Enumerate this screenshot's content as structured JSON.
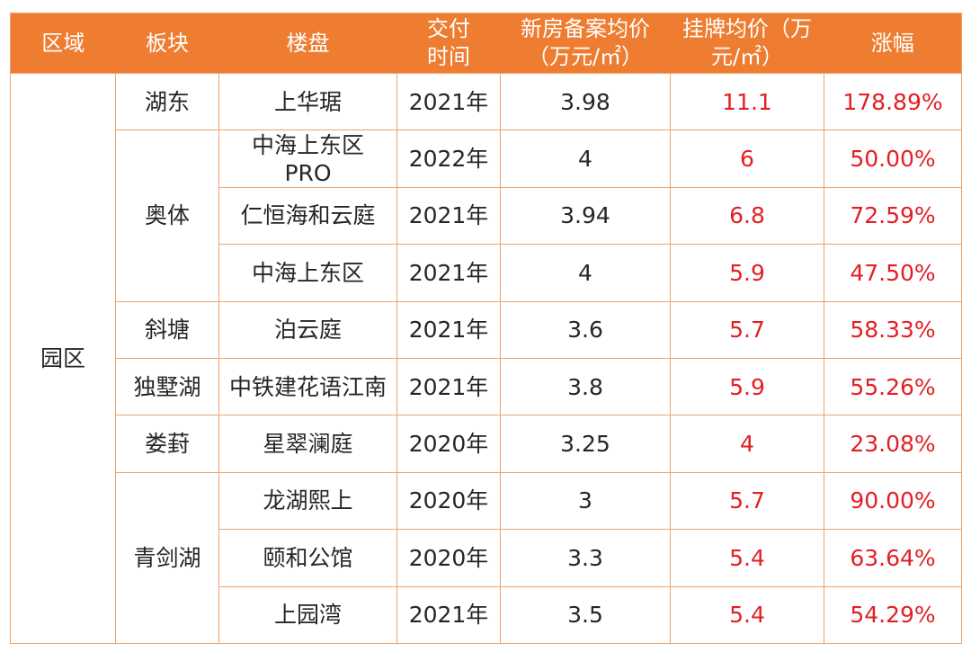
{
  "header": {
    "region": "区域",
    "sector": "板块",
    "project": "楼盘",
    "delivery": "交付时间",
    "record_price": "新房备案均价（万元/㎡）",
    "listing_price": "挂牌均价（万元/㎡）",
    "increase": "涨幅"
  },
  "region_name": "园区",
  "sectors": {
    "hudong": "湖东",
    "aoti": "奥体",
    "xietang": "斜塘",
    "dushuhu": "独墅湖",
    "loufeng": "娄葑",
    "qingjianhu": "青剑湖"
  },
  "rows": [
    {
      "project": "上华琚",
      "delivery": "2021年",
      "record": "3.98",
      "listing": "11.1",
      "increase": "178.89%"
    },
    {
      "project": "中海上东区PRO",
      "delivery": "2022年",
      "record": "4",
      "listing": "6",
      "increase": "50.00%"
    },
    {
      "project": "仁恒海和云庭",
      "delivery": "2021年",
      "record": "3.94",
      "listing": "6.8",
      "increase": "72.59%"
    },
    {
      "project": "中海上东区",
      "delivery": "2021年",
      "record": "4",
      "listing": "5.9",
      "increase": "47.50%"
    },
    {
      "project": "泊云庭",
      "delivery": "2021年",
      "record": "3.6",
      "listing": "5.7",
      "increase": "58.33%"
    },
    {
      "project": "中铁建花语江南",
      "delivery": "2021年",
      "record": "3.8",
      "listing": "5.9",
      "increase": "55.26%"
    },
    {
      "project": "星翠澜庭",
      "delivery": "2020年",
      "record": "3.25",
      "listing": "4",
      "increase": "23.08%"
    },
    {
      "project": "龙湖熙上",
      "delivery": "2020年",
      "record": "3",
      "listing": "5.7",
      "increase": "90.00%"
    },
    {
      "project": "颐和公馆",
      "delivery": "2020年",
      "record": "3.3",
      "listing": "5.4",
      "increase": "63.64%"
    },
    {
      "project": "上园湾",
      "delivery": "2021年",
      "record": "3.5",
      "listing": "5.4",
      "increase": "54.29%"
    }
  ],
  "colors": {
    "header_bg": "#ee7d31",
    "border": "#f0a36a",
    "highlight": "#e31e24",
    "text": "#262626"
  }
}
